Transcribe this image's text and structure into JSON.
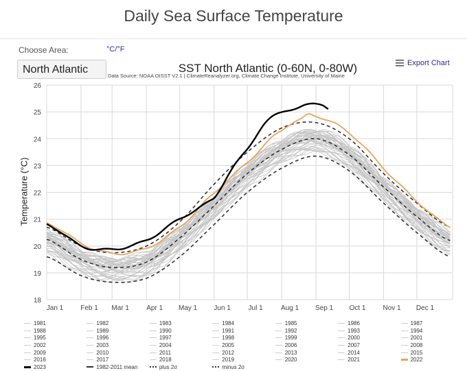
{
  "page_title": "Daily Sea Surface Temperature",
  "controls": {
    "choose_area_label": "Choose Area:",
    "units_toggle": "°C/°F",
    "area_selected": "North Atlantic",
    "export_label": "Export Chart"
  },
  "colors": {
    "year_2023": "#000000",
    "year_2022": "#e8a35a",
    "other_years": "#c4c4c4",
    "mean": "#333333",
    "link": "#2a2aa0"
  },
  "chart_data": {
    "type": "line",
    "title": "SST North Atlantic (0-60N, 0-80W)",
    "subtitle": "Data Source: NOAA OISST V2.1 | ClimateReanalyzer.org, Climate Change Institute, University of Maine",
    "xlabel": "",
    "ylabel": "Temperature (°C)",
    "ylim": [
      18,
      26
    ],
    "xlim_day_of_year": [
      0,
      365
    ],
    "y_ticks": [
      "18",
      "19",
      "20",
      "21",
      "22",
      "23",
      "24",
      "25",
      "26"
    ],
    "x_ticks": [
      {
        "label": "Jan 1",
        "day": 0
      },
      {
        "label": "Feb 1",
        "day": 31
      },
      {
        "label": "Mar 1",
        "day": 59
      },
      {
        "label": "Apr 1",
        "day": 90
      },
      {
        "label": "May 1",
        "day": 120
      },
      {
        "label": "Jun 1",
        "day": 151
      },
      {
        "label": "Jul 1",
        "day": 181
      },
      {
        "label": "Aug 1",
        "day": 212
      },
      {
        "label": "Sep 1",
        "day": 243
      },
      {
        "label": "Oct 1",
        "day": 273
      },
      {
        "label": "Nov 1",
        "day": 304
      },
      {
        "label": "Dec 1",
        "day": 334
      }
    ],
    "grid": true,
    "legend_placement": "bottom",
    "series": [
      {
        "name": "1982-2011 mean",
        "style": "dashed",
        "days": [
          0,
          31,
          59,
          90,
          120,
          151,
          181,
          212,
          243,
          273,
          304,
          334,
          364
        ],
        "values": [
          20.25,
          19.5,
          19.2,
          19.4,
          20.3,
          21.5,
          22.7,
          23.6,
          24.0,
          23.4,
          22.2,
          21.1,
          20.2
        ]
      },
      {
        "name": "plus 2σ",
        "style": "dashed",
        "days": [
          0,
          31,
          59,
          90,
          120,
          151,
          181,
          212,
          243,
          273,
          304,
          334,
          364
        ],
        "values": [
          20.7,
          20.0,
          19.75,
          20.0,
          20.9,
          22.3,
          23.5,
          24.4,
          24.6,
          24.0,
          22.7,
          21.6,
          20.7
        ]
      },
      {
        "name": "minus 2σ",
        "style": "dashed",
        "days": [
          0,
          31,
          59,
          90,
          120,
          151,
          181,
          212,
          243,
          273,
          304,
          334,
          364
        ],
        "values": [
          19.6,
          18.9,
          18.65,
          18.8,
          19.6,
          20.8,
          22.0,
          22.9,
          23.35,
          22.8,
          21.6,
          20.5,
          19.6
        ]
      },
      {
        "name": "2022",
        "style": "orange",
        "days": [
          0,
          31,
          59,
          90,
          120,
          151,
          181,
          212,
          230,
          240,
          273,
          304,
          334,
          364
        ],
        "values": [
          20.85,
          20.1,
          19.75,
          19.9,
          20.7,
          22.0,
          23.1,
          24.3,
          24.75,
          24.9,
          24.2,
          22.9,
          21.7,
          20.7
        ]
      },
      {
        "name": "2023",
        "style": "bold",
        "days": [
          0,
          31,
          59,
          90,
          120,
          151,
          166,
          181,
          196,
          212,
          227,
          237,
          243,
          249,
          255
        ],
        "values": [
          20.8,
          20.0,
          19.9,
          20.2,
          21.0,
          21.8,
          22.8,
          23.6,
          24.5,
          25.0,
          25.15,
          25.3,
          25.35,
          25.3,
          25.1
        ]
      }
    ],
    "other_years": [
      "1981",
      "1982",
      "1983",
      "1984",
      "1985",
      "1986",
      "1987",
      "1988",
      "1989",
      "1990",
      "1991",
      "1992",
      "1993",
      "1994",
      "1995",
      "1996",
      "1997",
      "1998",
      "1999",
      "2000",
      "2001",
      "2002",
      "2003",
      "2004",
      "2005",
      "2006",
      "2007",
      "2008",
      "2009",
      "2010",
      "2011",
      "2012",
      "2013",
      "2014",
      "2015",
      "2016",
      "2017",
      "2018",
      "2019",
      "2020",
      "2021"
    ],
    "other_years_offset_from_mean": [
      -0.45,
      -0.5,
      -0.4,
      -0.35,
      -0.45,
      -0.3,
      -0.4,
      -0.25,
      -0.2,
      -0.15,
      -0.1,
      -0.3,
      -0.2,
      -0.05,
      0.0,
      -0.1,
      0.05,
      0.15,
      0.1,
      0.05,
      0.1,
      0.15,
      0.2,
      0.15,
      0.3,
      0.25,
      0.1,
      0.05,
      0.1,
      0.3,
      0.0,
      0.3,
      0.0,
      -0.05,
      -0.1,
      0.2,
      0.3,
      0.0,
      0.2,
      0.35,
      0.3
    ]
  },
  "legend": [
    "1981",
    "1982",
    "1983",
    "1984",
    "1985",
    "1986",
    "1987",
    "1988",
    "1989",
    "1990",
    "1991",
    "1992",
    "1993",
    "1994",
    "1995",
    "1996",
    "1997",
    "1998",
    "1999",
    "2000",
    "2001",
    "2002",
    "2003",
    "2004",
    "2005",
    "2006",
    "2007",
    "2008",
    "2009",
    "2010",
    "2011",
    "2012",
    "2013",
    "2014",
    "2015",
    "2016",
    "2017",
    "2018",
    "2019",
    "2020",
    "2021",
    "2022",
    "2023",
    "1982-2011 mean",
    "plus 2σ",
    "minus 2σ"
  ]
}
